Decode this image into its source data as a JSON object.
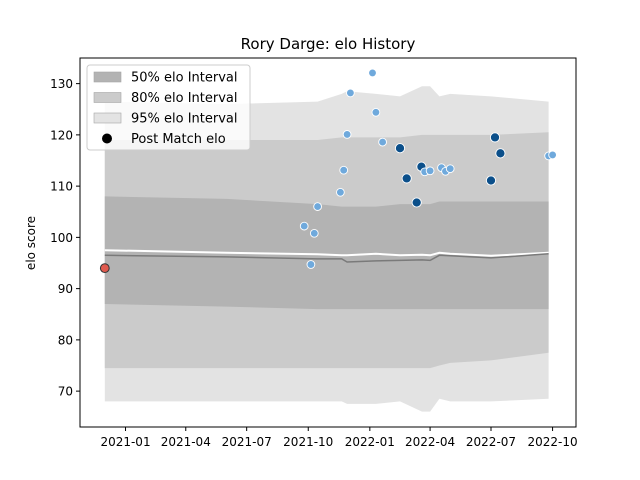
{
  "chart_data": {
    "type": "scatter",
    "title": "Rory Darge: elo History",
    "xlabel": "",
    "ylabel": "elo score",
    "x_ticks": [
      "2021-01",
      "2021-04",
      "2021-07",
      "2021-10",
      "2022-01",
      "2022-04",
      "2022-07",
      "2022-10"
    ],
    "y_ticks": [
      70,
      80,
      90,
      100,
      110,
      120,
      130
    ],
    "xlim": [
      "2020-10-25",
      "2022-11-05"
    ],
    "ylim": [
      63,
      135
    ],
    "grid": false,
    "legend_position": "top-left",
    "legend": [
      {
        "label": "50% elo Interval",
        "kind": "band",
        "color": "#b3b3b3"
      },
      {
        "label": "80% elo Interval",
        "kind": "band",
        "color": "#cbcbcb"
      },
      {
        "label": "95% elo Interval",
        "kind": "band",
        "color": "#e3e3e3"
      },
      {
        "label": "Post Match elo",
        "kind": "marker",
        "color": "#000000"
      }
    ],
    "colors": {
      "band_95": "#e3e3e3",
      "band_80": "#cbcbcb",
      "band_50": "#b3b3b3",
      "median_line": "#7a7a7a",
      "mean_line": "#ffffff",
      "point_light": "#6fa9dc",
      "point_dark": "#0b4f8a",
      "point_start": "#e05a4e"
    },
    "intervals": {
      "x": [
        "2020-12-01",
        "2021-06-01",
        "2021-10-15",
        "2021-11-20",
        "2021-11-28",
        "2022-01-10",
        "2022-02-15",
        "2022-03-20",
        "2022-04-01",
        "2022-04-15",
        "2022-05-01",
        "2022-07-01",
        "2022-09-25"
      ],
      "upper95": [
        126.5,
        126.0,
        126.5,
        128.0,
        128.5,
        128.0,
        127.5,
        129.5,
        129.5,
        127.5,
        128.0,
        127.5,
        126.5
      ],
      "lower95": [
        68.0,
        68.0,
        68.0,
        68.0,
        67.5,
        67.5,
        68.0,
        66.0,
        66.0,
        68.5,
        68.0,
        68.0,
        68.5
      ],
      "upper80": [
        119.0,
        119.0,
        119.0,
        119.5,
        119.5,
        119.5,
        119.5,
        120.0,
        120.0,
        120.0,
        120.0,
        120.0,
        120.5
      ],
      "lower80": [
        74.5,
        74.5,
        74.5,
        74.5,
        74.5,
        74.5,
        74.5,
        74.5,
        74.5,
        75.0,
        75.5,
        76.0,
        77.5
      ],
      "upper50": [
        108.0,
        107.5,
        106.5,
        106.0,
        106.0,
        106.0,
        106.5,
        106.5,
        106.5,
        107.0,
        107.0,
        107.0,
        107.0
      ],
      "lower50": [
        87.0,
        86.5,
        86.0,
        86.0,
        86.0,
        86.0,
        86.0,
        86.0,
        86.0,
        86.0,
        86.0,
        86.0,
        86.0
      ],
      "median": [
        96.5,
        96.2,
        95.8,
        95.8,
        95.2,
        95.4,
        95.5,
        95.6,
        95.5,
        96.5,
        96.4,
        96.0,
        96.8
      ],
      "mean": [
        97.5,
        97.0,
        96.7,
        96.5,
        96.5,
        96.8,
        96.5,
        96.6,
        96.5,
        97.0,
        96.8,
        96.4,
        97.0
      ]
    },
    "points": [
      {
        "x": "2020-12-01",
        "y": 94.0,
        "tone": "start"
      },
      {
        "x": "2021-09-25",
        "y": 102.2,
        "tone": "light"
      },
      {
        "x": "2021-10-05",
        "y": 94.7,
        "tone": "light"
      },
      {
        "x": "2021-10-10",
        "y": 100.8,
        "tone": "light"
      },
      {
        "x": "2021-10-15",
        "y": 106.0,
        "tone": "light"
      },
      {
        "x": "2021-11-18",
        "y": 108.8,
        "tone": "light"
      },
      {
        "x": "2021-11-23",
        "y": 113.1,
        "tone": "light"
      },
      {
        "x": "2021-11-28",
        "y": 120.1,
        "tone": "light"
      },
      {
        "x": "2021-12-03",
        "y": 128.2,
        "tone": "light"
      },
      {
        "x": "2022-01-05",
        "y": 132.1,
        "tone": "light"
      },
      {
        "x": "2022-01-10",
        "y": 124.4,
        "tone": "light"
      },
      {
        "x": "2022-01-20",
        "y": 118.6,
        "tone": "light"
      },
      {
        "x": "2022-02-15",
        "y": 117.4,
        "tone": "dark"
      },
      {
        "x": "2022-02-25",
        "y": 111.5,
        "tone": "dark"
      },
      {
        "x": "2022-03-12",
        "y": 106.8,
        "tone": "dark"
      },
      {
        "x": "2022-03-19",
        "y": 113.8,
        "tone": "dark"
      },
      {
        "x": "2022-03-24",
        "y": 112.8,
        "tone": "light"
      },
      {
        "x": "2022-04-01",
        "y": 113.0,
        "tone": "light"
      },
      {
        "x": "2022-04-18",
        "y": 113.6,
        "tone": "light"
      },
      {
        "x": "2022-04-24",
        "y": 112.9,
        "tone": "light"
      },
      {
        "x": "2022-05-01",
        "y": 113.4,
        "tone": "light"
      },
      {
        "x": "2022-07-01",
        "y": 111.1,
        "tone": "dark"
      },
      {
        "x": "2022-07-07",
        "y": 119.5,
        "tone": "dark"
      },
      {
        "x": "2022-07-15",
        "y": 116.4,
        "tone": "dark"
      },
      {
        "x": "2022-09-25",
        "y": 115.9,
        "tone": "light"
      },
      {
        "x": "2022-10-01",
        "y": 116.1,
        "tone": "light"
      }
    ]
  }
}
